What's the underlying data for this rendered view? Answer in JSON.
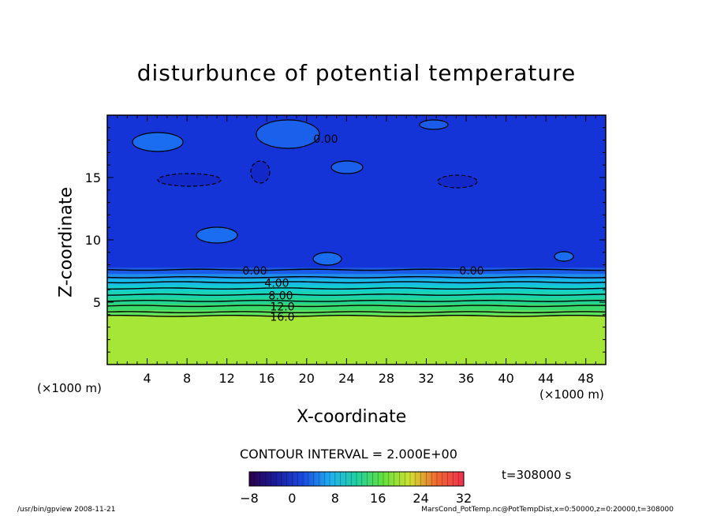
{
  "chart_data": {
    "type": "heatmap",
    "title": "disturbunce of potential temperature",
    "xlabel": "X-coordinate",
    "ylabel": "Z-coordinate",
    "x_unit": "(×1000 m)",
    "z_unit": "(×1000 m)",
    "xlim": [
      0,
      50
    ],
    "ylim": [
      0,
      20
    ],
    "x_ticks": [
      4,
      8,
      12,
      16,
      20,
      24,
      28,
      32,
      36,
      40,
      44,
      48
    ],
    "y_ticks": [
      5,
      10,
      15
    ],
    "field_layers": [
      {
        "z_range": [
          0,
          4
        ],
        "value": 18,
        "color": "#a6e637"
      },
      {
        "z_range": [
          4,
          4.4
        ],
        "value": 16,
        "color": "#5de05c"
      },
      {
        "z_range": [
          4.4,
          4.9
        ],
        "value": 14,
        "color": "#3ad96c"
      },
      {
        "z_range": [
          4.9,
          5.4
        ],
        "value": 12,
        "color": "#22d391"
      },
      {
        "z_range": [
          5.4,
          5.9
        ],
        "value": 10,
        "color": "#1bd3b2"
      },
      {
        "z_range": [
          5.9,
          6.4
        ],
        "value": 8,
        "color": "#14cfcf"
      },
      {
        "z_range": [
          6.4,
          6.9
        ],
        "value": 6,
        "color": "#18b9e6"
      },
      {
        "z_range": [
          6.9,
          7.3
        ],
        "value": 4,
        "color": "#1f8fee"
      },
      {
        "z_range": [
          7.3,
          7.8
        ],
        "value": 2,
        "color": "#1a5ce8"
      },
      {
        "z_range": [
          7.8,
          20
        ],
        "value": 0,
        "color": "#1434d8"
      }
    ],
    "contour_lines": [
      {
        "z": 7.6,
        "label": "0.00"
      },
      {
        "z": 7.0,
        "label": ""
      },
      {
        "z": 6.6,
        "label": "4.00"
      },
      {
        "z": 6.1,
        "label": ""
      },
      {
        "z": 5.6,
        "label": "8.00"
      },
      {
        "z": 5.1,
        "label": ""
      },
      {
        "z": 4.7,
        "label": "12.0"
      },
      {
        "z": 4.2,
        "label": ""
      },
      {
        "z": 3.9,
        "label": "16.0"
      }
    ],
    "upper_contour_label": "0.00",
    "contour_interval_text": "CONTOUR INTERVAL = 2.000E+00",
    "colorbar": {
      "range": [
        -8,
        32
      ],
      "tick_labels": [
        "−8",
        "0",
        "8",
        "16",
        "24",
        "32"
      ],
      "tick_values": [
        -8,
        0,
        8,
        16,
        24,
        32
      ]
    },
    "time_label": "t=308000 s"
  },
  "footer": {
    "left": "/usr/bin/gpview   2008-11-21",
    "right": "MarsCond_PotTemp.nc@PotTempDist,x=0:50000,z=0:20000,t=308000"
  }
}
